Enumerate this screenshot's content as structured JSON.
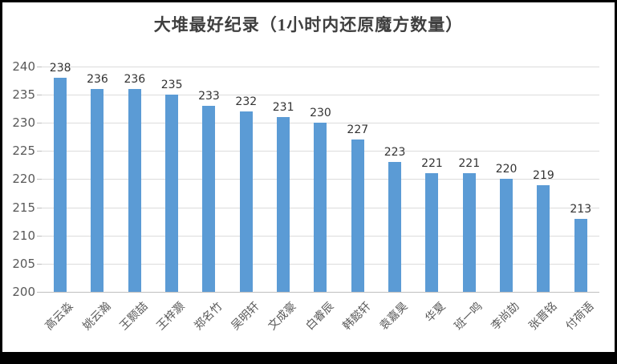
{
  "page": {
    "background": "#ffffff",
    "frame_color": "#000000"
  },
  "chart_data": {
    "type": "bar",
    "title": "大堆最好纪录（1小时内还原魔方数量）",
    "categories": [
      "高云淼",
      "姚云瀚",
      "王颢喆",
      "王梓灏",
      "郑名竹",
      "吴明轩",
      "文成豪",
      "白睿辰",
      "韩懿轩",
      "袁嘉昊",
      "华夏",
      "班一鸣",
      "李尚劼",
      "张晋铭",
      "付荷语"
    ],
    "values": [
      238,
      236,
      236,
      235,
      233,
      232,
      231,
      230,
      227,
      223,
      221,
      221,
      220,
      219,
      213
    ],
    "data_labels": true,
    "xlabel": "",
    "ylabel": "",
    "ylim": [
      200,
      240
    ],
    "ytick_step": 5,
    "yticks": [
      200,
      205,
      210,
      215,
      220,
      225,
      230,
      235,
      240
    ],
    "grid": true,
    "legend_position": "none",
    "bar_color": "#5b9bd5",
    "gridline_color": "#dcdcdc",
    "axis_line_color": "#bfbfbf",
    "tick_label_color": "#595959",
    "data_label_color": "#333333",
    "title_color": "#3f3f3f"
  }
}
